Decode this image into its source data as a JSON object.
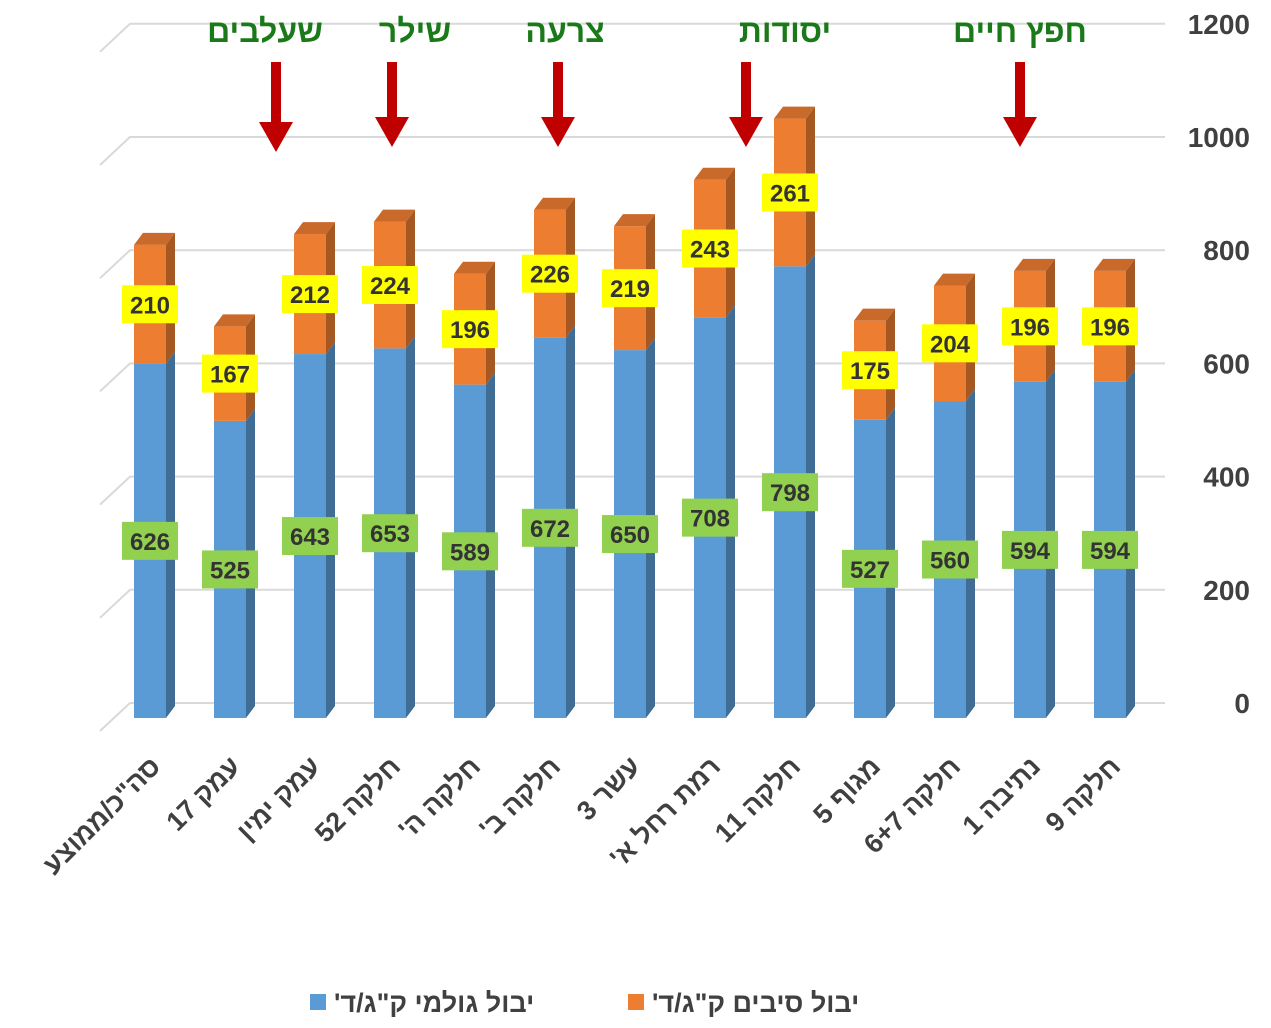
{
  "chart_data": {
    "type": "bar",
    "stacked": true,
    "categories": [
      "סה\"כ/ממוצע",
      "עמק 17",
      "עמק ימין",
      "חלקה 52",
      "חלקה ה'",
      "חלקה ב'",
      "עשר 3",
      "רמת רחל א'",
      "חלקה 11",
      "מגוף 5",
      "חלקה 6+7",
      "נתיבה 1",
      "חלקה 9"
    ],
    "series": [
      {
        "name": "יבול גולמי ק\"ג/ד'",
        "color": "#5b9bd5",
        "label_color": "#92d050",
        "values": [
          626,
          525,
          643,
          653,
          589,
          672,
          650,
          708,
          798,
          527,
          560,
          594,
          594
        ]
      },
      {
        "name": "יבול סיבים ק\"ג/ד'",
        "color": "#ed7d31",
        "label_color": "#ffff00",
        "values": [
          210,
          167,
          212,
          224,
          196,
          226,
          219,
          243,
          261,
          175,
          204,
          196,
          196
        ]
      }
    ],
    "ylim": [
      0,
      1200
    ],
    "yticks": [
      0,
      200,
      400,
      600,
      800,
      1000,
      1200
    ],
    "y_axis_side": "right",
    "grid": true,
    "annotations": [
      {
        "text": "שעלבים",
        "color": "#1a7a1a",
        "arrow_color": "#c00000"
      },
      {
        "text": "שילר",
        "color": "#1a7a1a",
        "arrow_color": "#c00000"
      },
      {
        "text": "צרעה",
        "color": "#1a7a1a",
        "arrow_color": "#c00000"
      },
      {
        "text": "יסודות",
        "color": "#1a7a1a",
        "arrow_color": "#c00000"
      },
      {
        "text": "חפץ חיים",
        "color": "#1a7a1a",
        "arrow_color": "#c00000"
      }
    ],
    "legend": "bottom"
  }
}
